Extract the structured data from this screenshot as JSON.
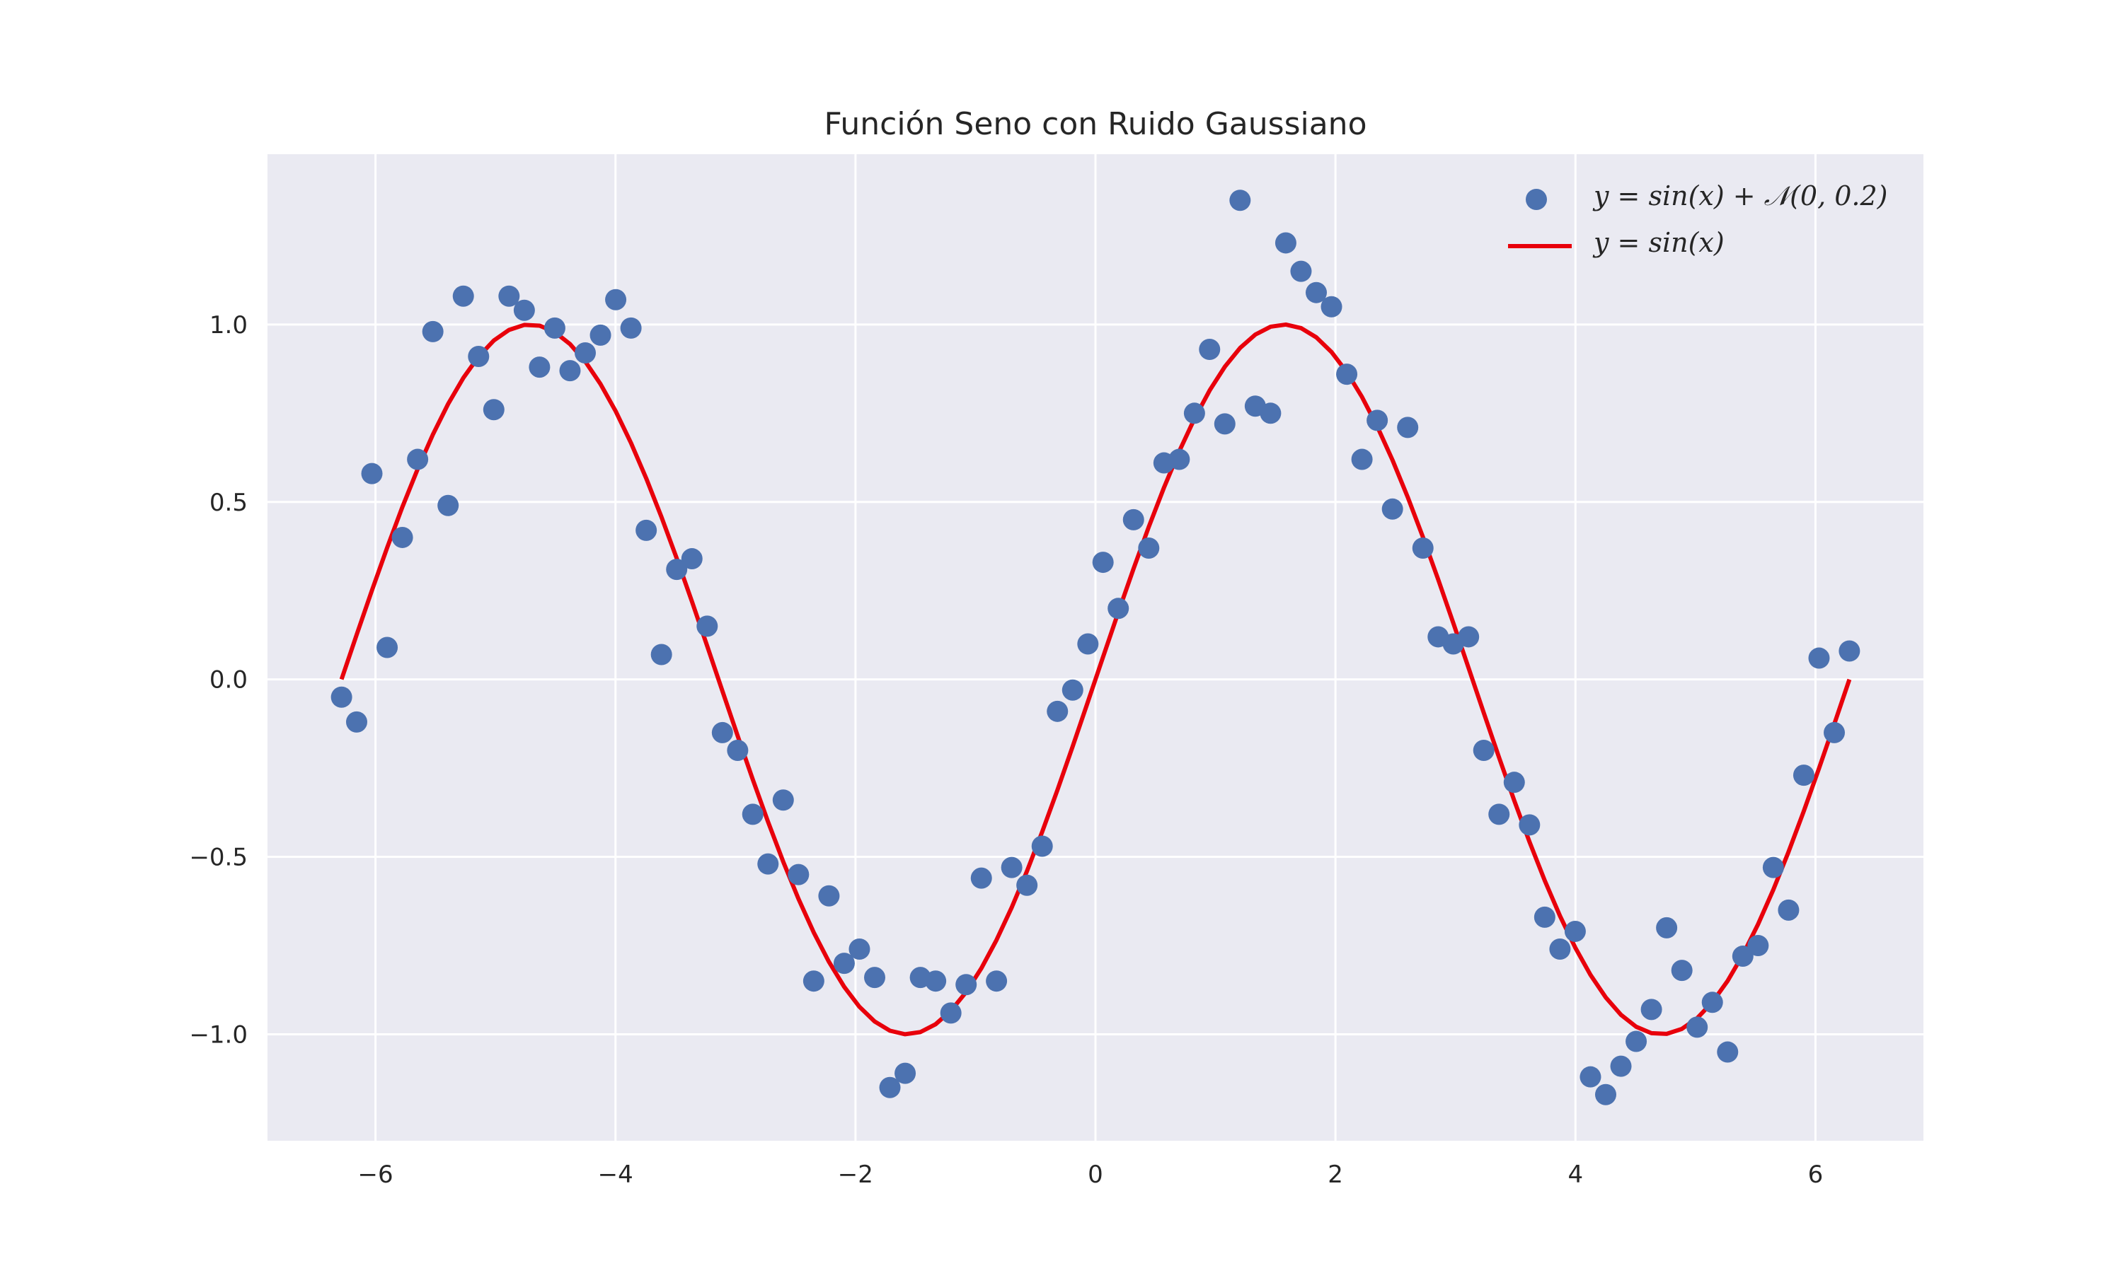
{
  "chart_data": {
    "type": "scatter",
    "title": "Función Seno con Ruido Gaussiano",
    "xlabel": "",
    "ylabel": "",
    "xlim": [
      -6.9,
      6.9
    ],
    "ylim": [
      -1.3,
      1.48
    ],
    "xticks": [
      -6,
      -4,
      -2,
      0,
      2,
      4,
      6
    ],
    "xtick_labels": [
      "−6",
      "−4",
      "−2",
      "0",
      "2",
      "4",
      "6"
    ],
    "yticks": [
      -1.0,
      -0.5,
      0.0,
      0.5,
      1.0
    ],
    "ytick_labels": [
      "−1.0",
      "−0.5",
      "0.0",
      "0.5",
      "1.0"
    ],
    "grid": true,
    "legend_position": "upper right",
    "colors": {
      "background": "#eaeaf2",
      "grid": "#ffffff",
      "scatter": "#4c72b0",
      "line": "#e8000b"
    },
    "series": [
      {
        "name": "y = sin(x) + 𝒩(0, 0.2)",
        "kind": "scatter",
        "x": [
          -6.283,
          -6.157,
          -6.03,
          -5.903,
          -5.776,
          -5.649,
          -5.522,
          -5.395,
          -5.268,
          -5.141,
          -5.014,
          -4.887,
          -4.76,
          -4.633,
          -4.506,
          -4.379,
          -4.252,
          -4.125,
          -3.998,
          -3.871,
          -3.744,
          -3.617,
          -3.49,
          -3.363,
          -3.236,
          -3.109,
          -2.982,
          -2.856,
          -2.729,
          -2.602,
          -2.475,
          -2.348,
          -2.221,
          -2.094,
          -1.967,
          -1.84,
          -1.713,
          -1.586,
          -1.459,
          -1.332,
          -1.205,
          -1.078,
          -0.951,
          -0.825,
          -0.698,
          -0.571,
          -0.444,
          -0.317,
          -0.19,
          -0.063,
          0.063,
          0.19,
          0.317,
          0.444,
          0.571,
          0.698,
          0.825,
          0.951,
          1.078,
          1.205,
          1.332,
          1.459,
          1.586,
          1.713,
          1.84,
          1.967,
          2.094,
          2.221,
          2.348,
          2.475,
          2.602,
          2.729,
          2.856,
          2.982,
          3.109,
          3.236,
          3.363,
          3.49,
          3.617,
          3.744,
          3.871,
          3.998,
          4.125,
          4.252,
          4.379,
          4.506,
          4.633,
          4.76,
          4.887,
          5.014,
          5.141,
          5.268,
          5.395,
          5.522,
          5.649,
          5.776,
          5.903,
          6.03,
          6.157,
          6.283
        ],
        "y": [
          -0.05,
          -0.12,
          0.58,
          0.09,
          0.4,
          0.62,
          0.98,
          0.49,
          1.08,
          0.91,
          0.76,
          1.08,
          1.04,
          0.88,
          0.99,
          0.87,
          0.92,
          0.97,
          1.07,
          0.99,
          0.42,
          0.07,
          0.31,
          0.34,
          0.15,
          -0.15,
          -0.2,
          -0.38,
          -0.52,
          -0.34,
          -0.55,
          -0.85,
          -0.61,
          -0.8,
          -0.76,
          -0.84,
          -1.15,
          -1.11,
          -0.84,
          -0.85,
          -0.94,
          -0.86,
          -0.56,
          -0.85,
          -0.53,
          -0.58,
          -0.47,
          -0.09,
          -0.03,
          0.1,
          0.33,
          0.2,
          0.45,
          0.37,
          0.61,
          0.62,
          0.75,
          0.93,
          0.72,
          1.35,
          0.77,
          0.75,
          1.23,
          1.15,
          1.09,
          1.05,
          0.86,
          0.62,
          0.73,
          0.48,
          0.71,
          0.37,
          0.12,
          0.1,
          0.12,
          -0.2,
          -0.38,
          -0.29,
          -0.41,
          -0.67,
          -0.76,
          -0.71,
          -1.12,
          -1.17,
          -1.09,
          -1.02,
          -0.93,
          -0.7,
          -0.82,
          -0.98,
          -0.91,
          -1.05,
          -0.78,
          -0.75,
          -0.53,
          -0.65,
          -0.27,
          0.06,
          -0.15,
          0.08
        ]
      },
      {
        "name": "y = sin(x)",
        "kind": "line",
        "function": "sin",
        "x_range": [
          -6.283,
          6.283
        ],
        "samples": 100
      }
    ]
  }
}
